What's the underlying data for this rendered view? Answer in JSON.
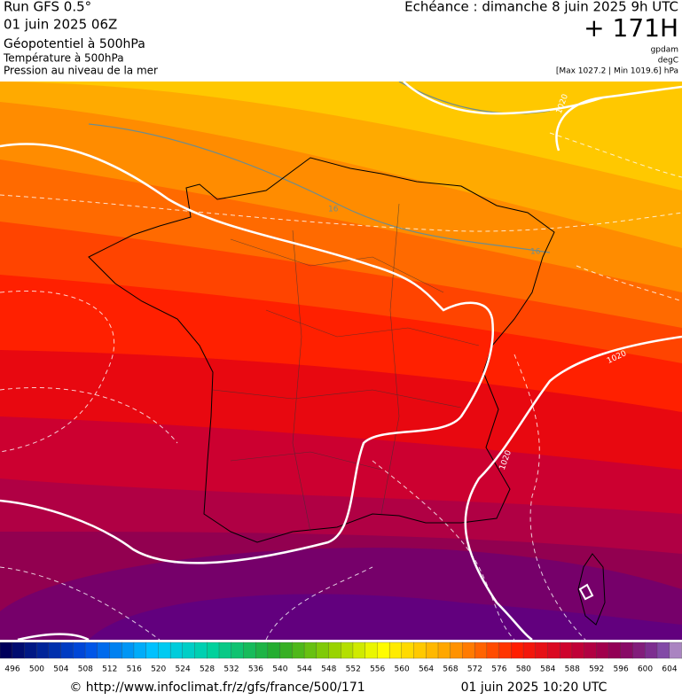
{
  "header": {
    "run": "Run GFS 0.5°",
    "run_date": "01 juin 2025 06Z",
    "fields": [
      "Géopotentiel à 500hPa",
      "Température à 500hPa",
      "Pression au niveau de la mer"
    ],
    "forecast": "Echéance : dimanche 8 juin 2025 9h UTC",
    "lead": "+ 171H",
    "units": [
      "gpdam",
      "degC",
      "[Max 1027.2 | Min 1019.6] hPa"
    ]
  },
  "map": {
    "contour_labels": [
      "1020",
      "16",
      "16",
      "1020",
      "1020",
      "1020"
    ]
  },
  "colorbar": {
    "labels": [
      496,
      500,
      504,
      508,
      512,
      516,
      520,
      524,
      528,
      532,
      536,
      540,
      544,
      548,
      552,
      556,
      560,
      564,
      568,
      572,
      576,
      580,
      584,
      588,
      592,
      596,
      600,
      604
    ]
  },
  "footer": {
    "source": "© http://www.infoclimat.fr/z/gfs/france/500/171",
    "timestamp": "01 juin 2025 10:20 UTC"
  }
}
